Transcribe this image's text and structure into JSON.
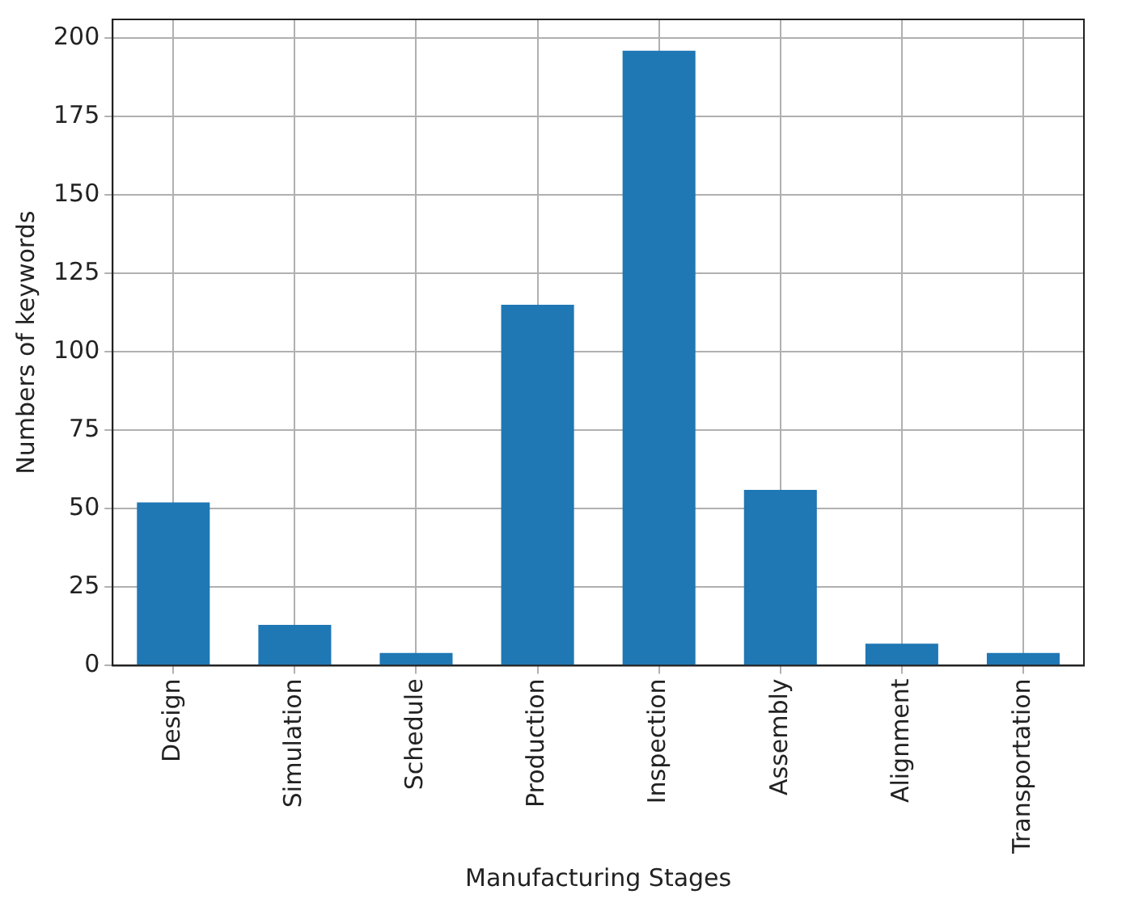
{
  "chart_data": {
    "type": "bar",
    "xlabel": "Manufacturing Stages",
    "ylabel": "Numbers of keywords",
    "categories": [
      "Design",
      "Simulation",
      "Schedule",
      "Production",
      "Inspection",
      "Assembly",
      "Alignment",
      "Transportation"
    ],
    "values": [
      52,
      13,
      4,
      115,
      196,
      56,
      7,
      4
    ],
    "color": "#1f77b4",
    "ylim": [
      0,
      206
    ],
    "yticks": [
      0,
      25,
      50,
      75,
      100,
      125,
      150,
      175,
      200
    ],
    "grid": true
  }
}
